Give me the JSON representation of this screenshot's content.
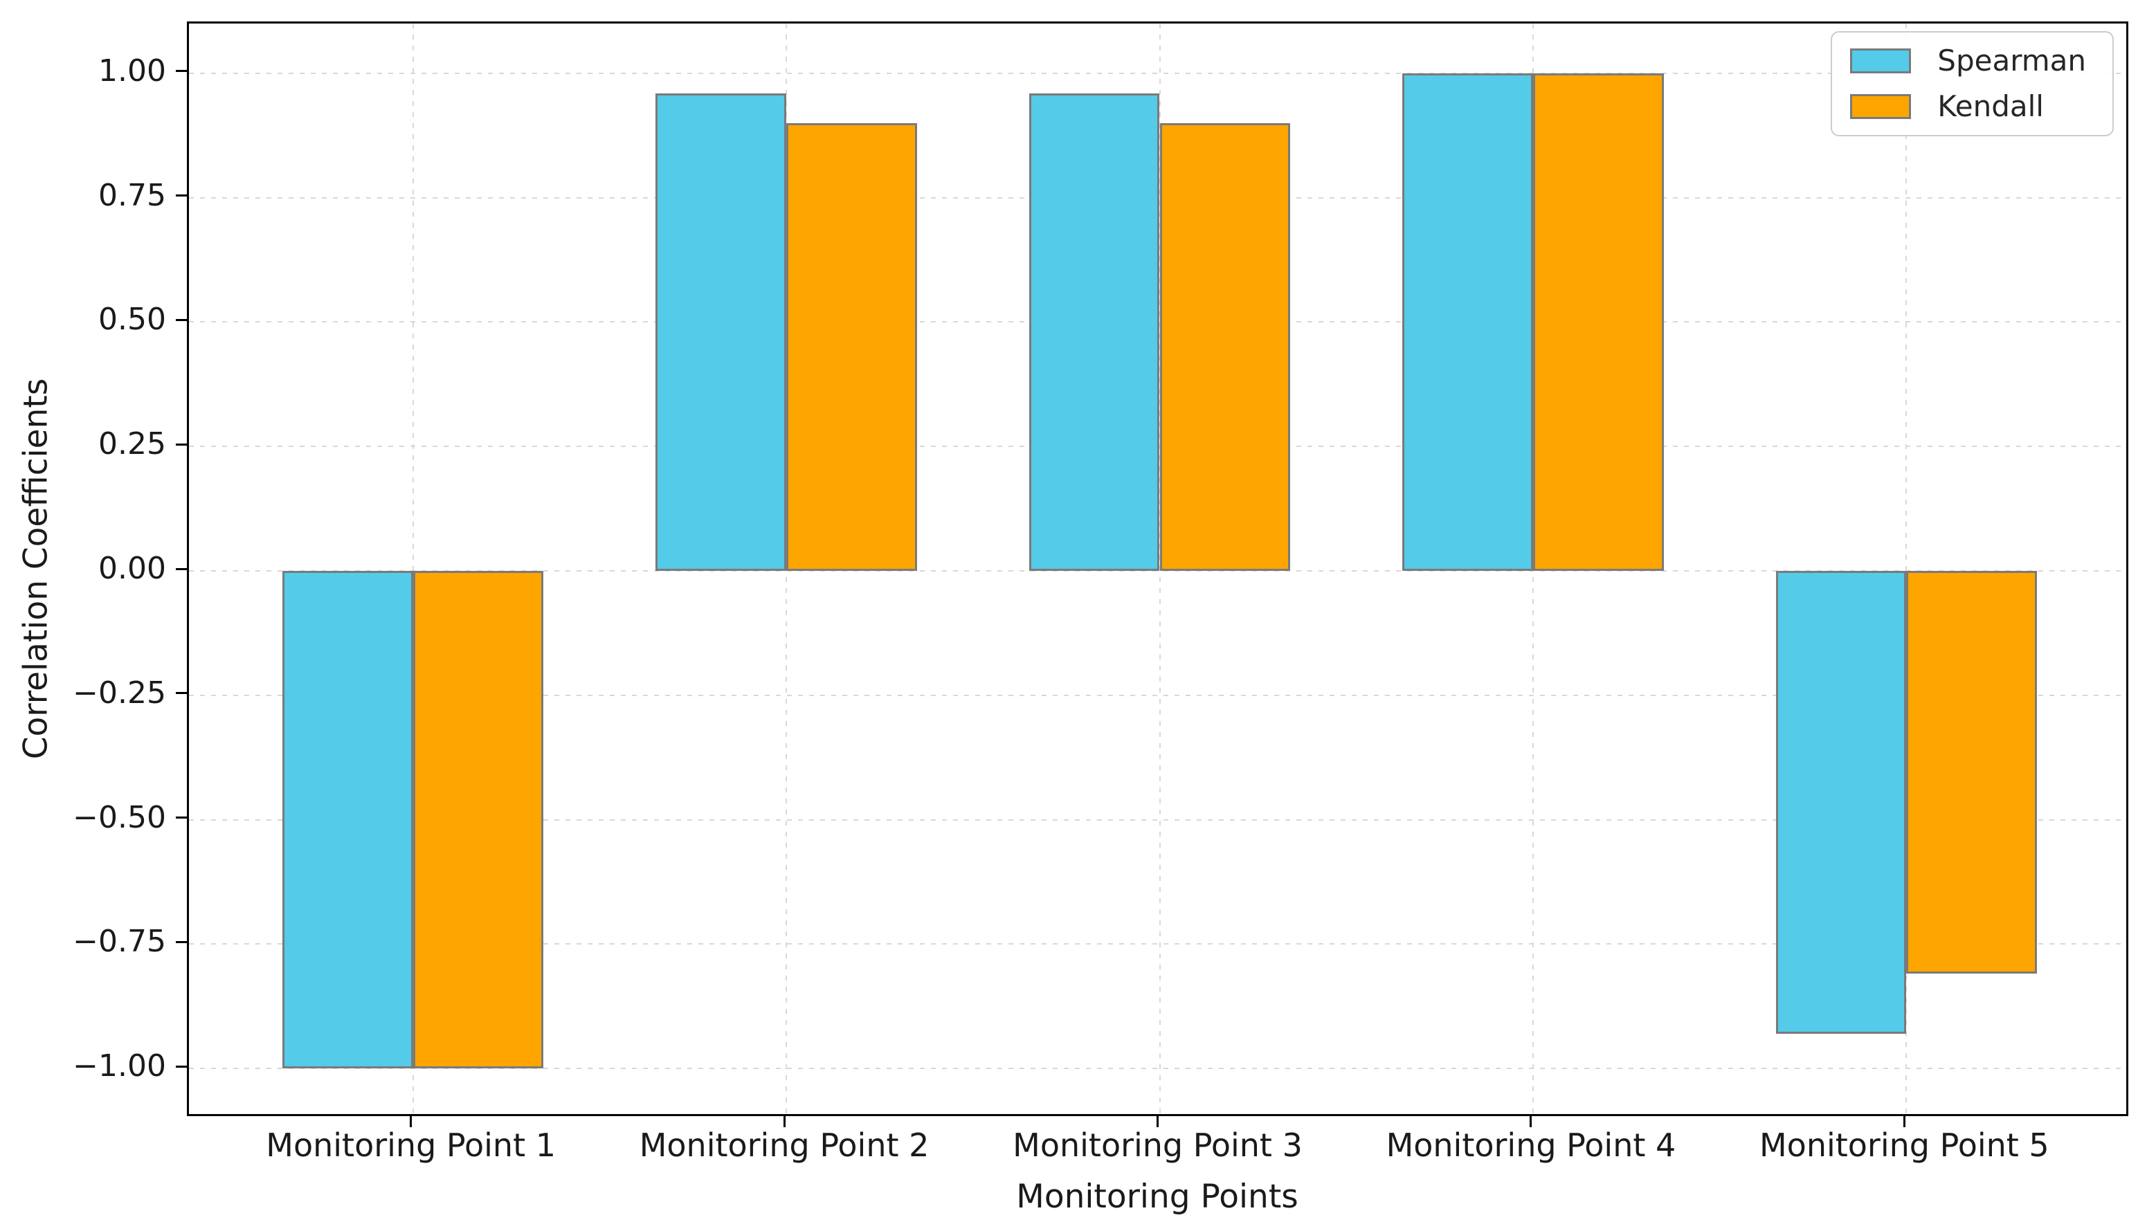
{
  "chart_data": {
    "type": "bar",
    "title": "",
    "xlabel": "Monitoring Points",
    "ylabel": "Correlation Coefficients",
    "categories": [
      "Monitoring Point 1",
      "Monitoring Point 2",
      "Monitoring Point 3",
      "Monitoring Point 4",
      "Monitoring Point 5"
    ],
    "series": [
      {
        "name": "Spearman",
        "color": "#53CBE9",
        "values": [
          -1.0,
          0.96,
          0.96,
          1.0,
          -0.93
        ]
      },
      {
        "name": "Kendall",
        "color": "#FFA500",
        "values": [
          -1.0,
          0.9,
          0.9,
          1.0,
          -0.81
        ]
      }
    ],
    "bar_edge_color": "#7a7a7a",
    "bar_width": 0.35,
    "ylim": [
      -1.1,
      1.1
    ],
    "xlim": [
      -0.6,
      4.6
    ],
    "yticks": [
      1.0,
      0.75,
      0.5,
      0.25,
      0.0,
      -0.25,
      -0.5,
      -0.75,
      -1.0
    ],
    "ytick_labels": [
      "1.00",
      "0.75",
      "0.50",
      "0.25",
      "0.00",
      "−0.25",
      "−0.50",
      "−0.75",
      "−1.00"
    ],
    "grid": true,
    "grid_color": "#d8d8d8",
    "grid_style": "dashed",
    "legend_position": "upper right",
    "legend_entries": [
      "Spearman",
      "Kendall"
    ]
  }
}
